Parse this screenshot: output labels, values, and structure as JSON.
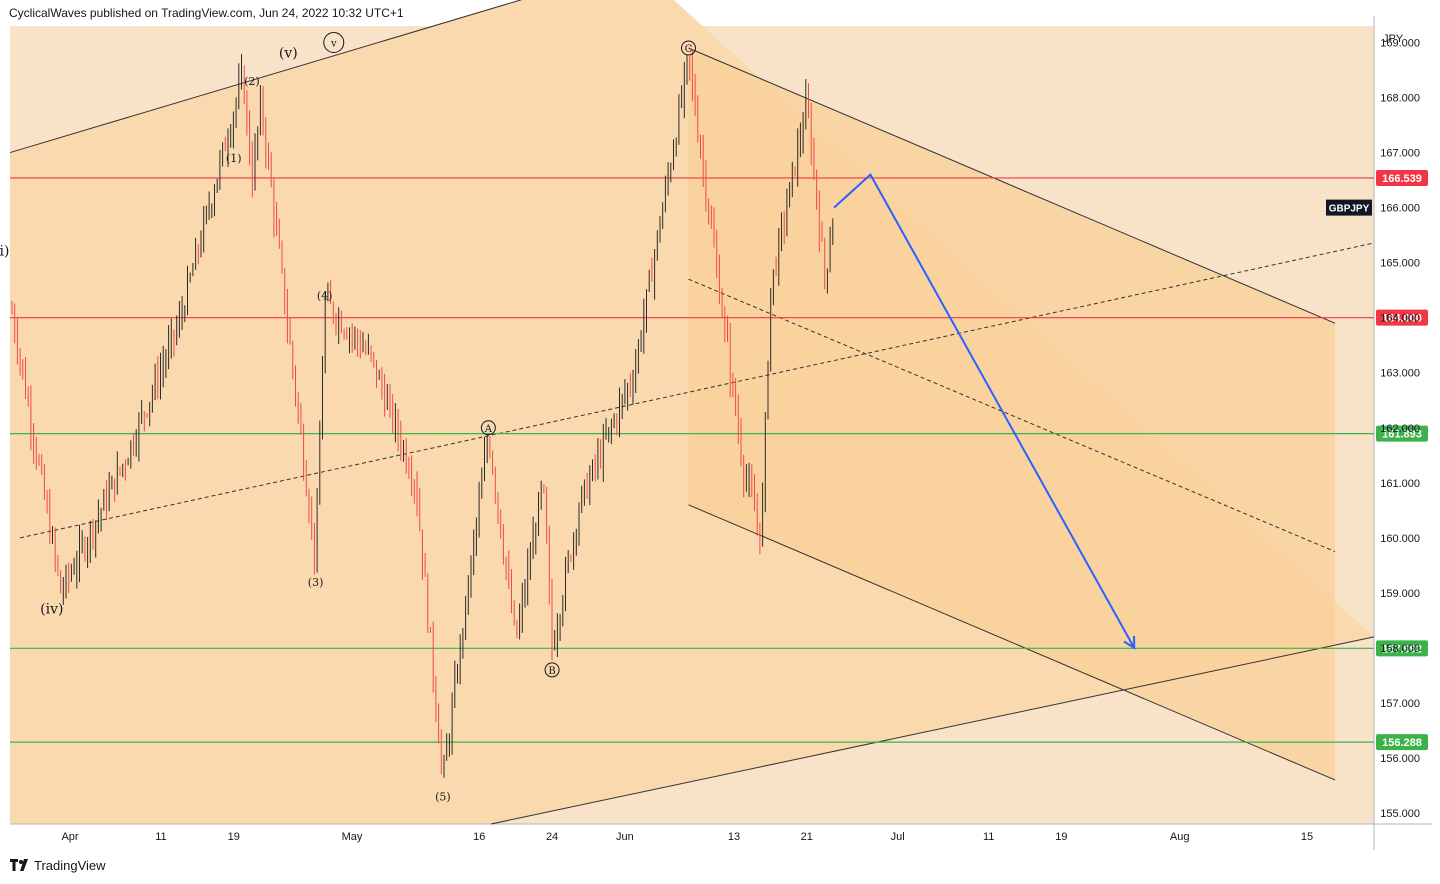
{
  "header": {
    "published": "CyclicalWaves published on TradingView.com, Jun 24, 2022 10:32 UTC+1"
  },
  "footer": {
    "brand": "TradingView"
  },
  "colors": {
    "background": "#f8e3c9",
    "channel_fill": "#f9d9ad",
    "projection_fill": "#facf98",
    "candle_up": "#2b2b2b",
    "candle_down": "#f04a4a",
    "resistance": "#f23645",
    "support": "#3bb34a",
    "projection_arrow": "#2962ff"
  },
  "chart_data": {
    "type": "candlestick",
    "symbol": "GBPJPY",
    "currency": "JPY",
    "y_range": [
      154.8,
      169.3
    ],
    "y_ticks": [
      "155.000",
      "156.000",
      "157.000",
      "158.000",
      "159.000",
      "160.000",
      "161.000",
      "162.000",
      "163.000",
      "164.000",
      "165.000",
      "166.000",
      "167.000",
      "168.000",
      "169.000"
    ],
    "x_ticks": [
      {
        "label": "Apr",
        "date": "2022-04-01"
      },
      {
        "label": "11",
        "date": "2022-04-11"
      },
      {
        "label": "19",
        "date": "2022-04-19"
      },
      {
        "label": "May",
        "date": "2022-05-02"
      },
      {
        "label": "16",
        "date": "2022-05-16"
      },
      {
        "label": "24",
        "date": "2022-05-24"
      },
      {
        "label": "Jun",
        "date": "2022-06-01"
      },
      {
        "label": "13",
        "date": "2022-06-13"
      },
      {
        "label": "21",
        "date": "2022-06-21"
      },
      {
        "label": "Jul",
        "date": "2022-07-01"
      },
      {
        "label": "11",
        "date": "2022-07-11"
      },
      {
        "label": "19",
        "date": "2022-07-19"
      },
      {
        "label": "Aug",
        "date": "2022-08-01"
      },
      {
        "label": "15",
        "date": "2022-08-15"
      }
    ],
    "price_levels": [
      {
        "label": "166.539",
        "value": 166.539,
        "kind": "resistance"
      },
      {
        "label": "164.000",
        "value": 164.0,
        "kind": "resistance"
      },
      {
        "label": "161.893",
        "value": 161.893,
        "kind": "support"
      },
      {
        "label": "157.992",
        "value": 157.992,
        "kind": "support"
      },
      {
        "label": "156.288",
        "value": 156.288,
        "kind": "support"
      }
    ],
    "symbol_badge": "GBPJPY",
    "price_path": [
      {
        "date": "2022-03-21",
        "price": 161.3
      },
      {
        "date": "2022-03-25",
        "price": 164.7
      },
      {
        "date": "2022-03-31",
        "price": 159.0
      },
      {
        "date": "2022-04-07",
        "price": 161.4
      },
      {
        "date": "2022-04-13",
        "price": 163.9
      },
      {
        "date": "2022-04-20",
        "price": 168.4
      },
      {
        "date": "2022-04-21",
        "price": 166.5
      },
      {
        "date": "2022-04-22",
        "price": 167.9
      },
      {
        "date": "2022-04-28",
        "price": 159.6
      },
      {
        "date": "2022-04-29",
        "price": 164.3
      },
      {
        "date": "2022-05-04",
        "price": 163.3
      },
      {
        "date": "2022-05-09",
        "price": 161.0
      },
      {
        "date": "2022-05-12",
        "price": 155.6
      },
      {
        "date": "2022-05-17",
        "price": 161.9
      },
      {
        "date": "2022-05-20",
        "price": 158.1
      },
      {
        "date": "2022-05-23",
        "price": 161.0
      },
      {
        "date": "2022-05-24",
        "price": 158.0
      },
      {
        "date": "2022-05-27",
        "price": 160.6
      },
      {
        "date": "2022-06-02",
        "price": 163.0
      },
      {
        "date": "2022-06-08",
        "price": 168.7
      },
      {
        "date": "2022-06-14",
        "price": 161.3
      },
      {
        "date": "2022-06-16",
        "price": 160.0
      },
      {
        "date": "2022-06-17",
        "price": 164.5
      },
      {
        "date": "2022-06-21",
        "price": 167.9
      },
      {
        "date": "2022-06-23",
        "price": 164.7
      },
      {
        "date": "2022-06-24",
        "price": 166.0
      }
    ],
    "wave_labels": [
      {
        "text": "(iii)",
        "date": "2022-03-24",
        "price": 165.2,
        "circled": false
      },
      {
        "text": "(iv)",
        "date": "2022-03-30",
        "price": 158.7,
        "circled": false
      },
      {
        "text": "(1)",
        "date": "2022-04-19",
        "price": 166.9,
        "circled": false
      },
      {
        "text": "(2)",
        "date": "2022-04-21",
        "price": 168.3,
        "circled": false
      },
      {
        "text": "(v)",
        "date": "2022-04-25",
        "price": 168.8,
        "circled": false
      },
      {
        "text": "v",
        "date": "2022-04-30",
        "price": 169.0,
        "circled": true
      },
      {
        "text": "(3)",
        "date": "2022-04-28",
        "price": 159.2,
        "circled": false
      },
      {
        "text": "(4)",
        "date": "2022-04-29",
        "price": 164.4,
        "circled": false
      },
      {
        "text": "(5)",
        "date": "2022-05-12",
        "price": 155.3,
        "circled": false
      },
      {
        "text": "A",
        "date": "2022-05-17",
        "price": 162.0,
        "circled": true
      },
      {
        "text": "B",
        "date": "2022-05-24",
        "price": 157.6,
        "circled": true
      },
      {
        "text": "C",
        "date": "2022-06-08",
        "price": 168.9,
        "circled": true
      }
    ],
    "projection": [
      {
        "date": "2022-06-24",
        "price": 166.0
      },
      {
        "date": "2022-06-28",
        "price": 166.6
      },
      {
        "date": "2022-07-27",
        "price": 158.0
      }
    ]
  }
}
